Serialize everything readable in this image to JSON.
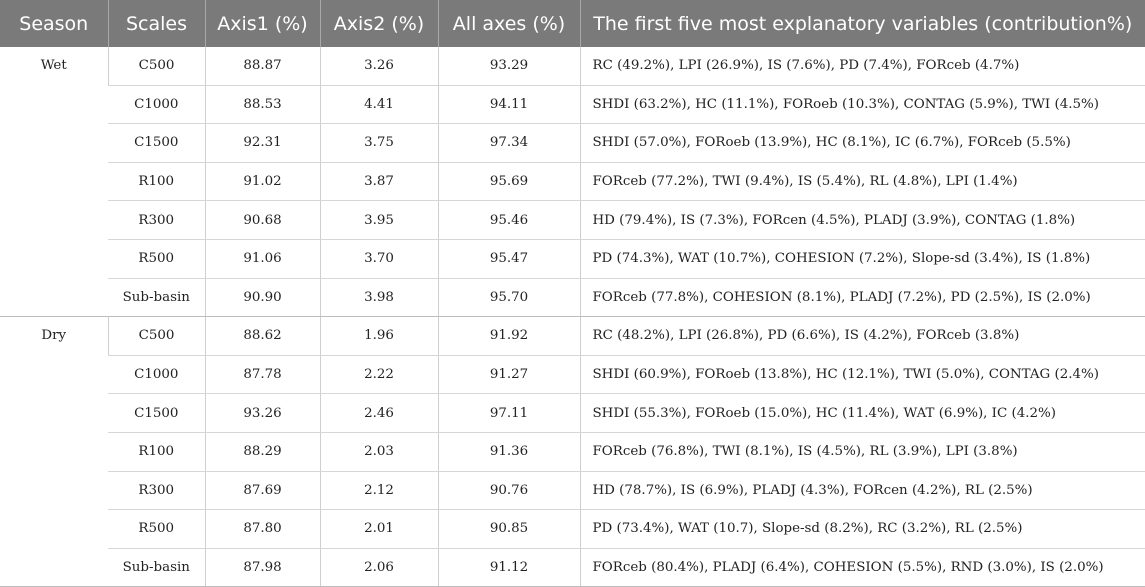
{
  "table": {
    "headers": [
      "Season",
      "Scales",
      "Axis1 (%)",
      "Axis2 (%)",
      "All axes (%)",
      "The first five most explanatory variables (contribution%)"
    ],
    "groups": [
      {
        "season": "Wet",
        "rows": [
          {
            "scale": "C500",
            "axis1": "88.87",
            "axis2": "3.26",
            "all": "93.29",
            "vars": "RC (49.2%), LPI (26.9%), IS (7.6%), PD (7.4%), FORceb (4.7%)"
          },
          {
            "scale": "C1000",
            "axis1": "88.53",
            "axis2": "4.41",
            "all": "94.11",
            "vars": "SHDI (63.2%), HC (11.1%), FORoeb (10.3%), CONTAG (5.9%), TWI (4.5%)"
          },
          {
            "scale": "C1500",
            "axis1": "92.31",
            "axis2": "3.75",
            "all": "97.34",
            "vars": "SHDI (57.0%), FORoeb (13.9%), HC (8.1%), IC (6.7%), FORceb (5.5%)"
          },
          {
            "scale": "R100",
            "axis1": "91.02",
            "axis2": "3.87",
            "all": "95.69",
            "vars": "FORceb (77.2%), TWI (9.4%), IS (5.4%), RL (4.8%), LPI (1.4%)"
          },
          {
            "scale": "R300",
            "axis1": "90.68",
            "axis2": "3.95",
            "all": "95.46",
            "vars": "HD (79.4%), IS (7.3%), FORcen (4.5%), PLADJ (3.9%), CONTAG (1.8%)"
          },
          {
            "scale": "R500",
            "axis1": "91.06",
            "axis2": "3.70",
            "all": "95.47",
            "vars": "PD (74.3%), WAT (10.7%), COHESION (7.2%), Slope-sd (3.4%), IS (1.8%)"
          },
          {
            "scale": "Sub-basin",
            "axis1": "90.90",
            "axis2": "3.98",
            "all": "95.70",
            "vars": "FORceb (77.8%), COHESION (8.1%), PLADJ (7.2%), PD (2.5%), IS (2.0%)"
          }
        ]
      },
      {
        "season": "Dry",
        "rows": [
          {
            "scale": "C500",
            "axis1": "88.62",
            "axis2": "1.96",
            "all": "91.92",
            "vars": "RC (48.2%), LPI (26.8%), PD (6.6%), IS (4.2%), FORceb (3.8%)"
          },
          {
            "scale": "C1000",
            "axis1": "87.78",
            "axis2": "2.22",
            "all": "91.27",
            "vars": "SHDI (60.9%), FORoeb (13.8%), HC (12.1%), TWI (5.0%), CONTAG (2.4%)"
          },
          {
            "scale": "C1500",
            "axis1": "93.26",
            "axis2": "2.46",
            "all": "97.11",
            "vars": "SHDI (55.3%), FORoeb (15.0%), HC (11.4%), WAT (6.9%), IC (4.2%)"
          },
          {
            "scale": "R100",
            "axis1": "88.29",
            "axis2": "2.03",
            "all": "91.36",
            "vars": "FORceb (76.8%), TWI (8.1%), IS (4.5%), RL (3.9%), LPI (3.8%)"
          },
          {
            "scale": "R300",
            "axis1": "87.69",
            "axis2": "2.12",
            "all": "90.76",
            "vars": "HD (78.7%), IS (6.9%), PLADJ (4.3%), FORcen (4.2%), RL (2.5%)"
          },
          {
            "scale": "R500",
            "axis1": "87.80",
            "axis2": "2.01",
            "all": "90.85",
            "vars": "PD (73.4%), WAT (10.7), Slope-sd (8.2%), RC (3.2%), RL (2.5%)"
          },
          {
            "scale": "Sub-basin",
            "axis1": "87.98",
            "axis2": "2.06",
            "all": "91.12",
            "vars": "FORceb (80.4%), PLADJ (6.4%), COHESION (5.5%), RND (3.0%), IS (2.0%)"
          }
        ]
      }
    ]
  }
}
